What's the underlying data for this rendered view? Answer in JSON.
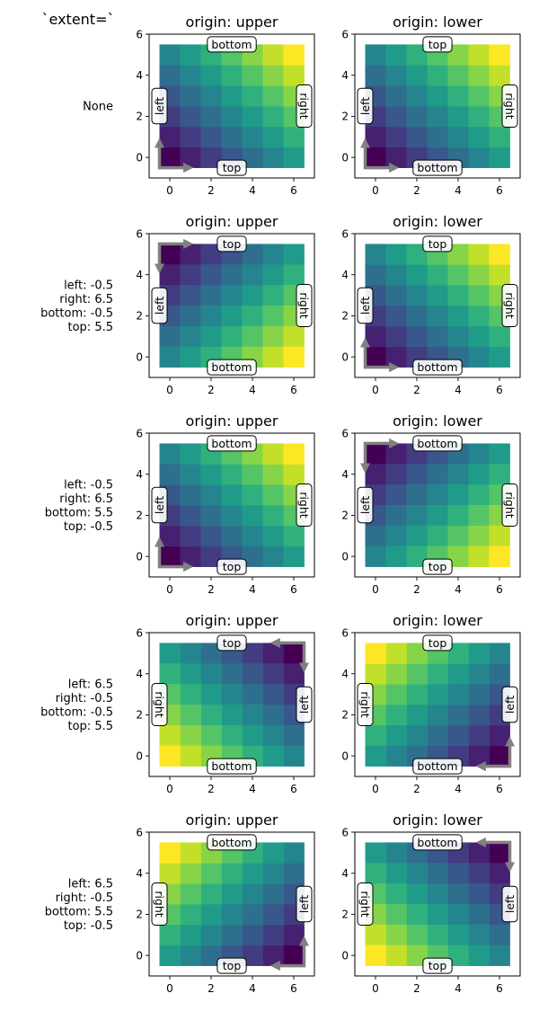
{
  "figure": {
    "header_text": "`extent=`",
    "title_left": "origin: upper",
    "title_right": "origin: lower",
    "label_left_text": "left",
    "label_right_text": "right",
    "label_top_text": "top",
    "label_bottom_text": "bottom",
    "colormap": "viridis",
    "colormap_stops": [
      "#440154",
      "#482878",
      "#3e4989",
      "#31688e",
      "#26828e",
      "#1f9e89",
      "#35b779",
      "#6ece58",
      "#b5de2b",
      "#fde725"
    ],
    "arrow_color": "#808080",
    "label_box_fill": "#ffffff",
    "label_box_edge": "#000000"
  },
  "chart_data": {
    "type": "heatmap",
    "image_values": [
      [
        0,
        1,
        2,
        3,
        4,
        5,
        6
      ],
      [
        1,
        2,
        3,
        4,
        5,
        6,
        7
      ],
      [
        2,
        3,
        4,
        5,
        6,
        7,
        8
      ],
      [
        3,
        4,
        5,
        6,
        7,
        8,
        9
      ],
      [
        4,
        5,
        6,
        7,
        8,
        9,
        10
      ],
      [
        5,
        6,
        7,
        8,
        9,
        10,
        11
      ]
    ],
    "xlim": [
      -1,
      7
    ],
    "ylim": [
      -1,
      6
    ],
    "xticks": [
      0,
      2,
      4,
      6
    ],
    "yticks": [
      0,
      2,
      4,
      6
    ],
    "rows": [
      {
        "row_label": [
          "None"
        ],
        "extent": null
      },
      {
        "row_label": [
          "left: -0.5",
          "right: 6.5",
          "bottom: -0.5",
          "top: 5.5"
        ],
        "extent": [
          -0.5,
          6.5,
          -0.5,
          5.5
        ]
      },
      {
        "row_label": [
          "left: -0.5",
          "right: 6.5",
          "bottom: 5.5",
          "top: -0.5"
        ],
        "extent": [
          -0.5,
          6.5,
          5.5,
          -0.5
        ]
      },
      {
        "row_label": [
          "left: 6.5",
          "right: -0.5",
          "bottom: -0.5",
          "top: 5.5"
        ],
        "extent": [
          6.5,
          -0.5,
          -0.5,
          5.5
        ]
      },
      {
        "row_label": [
          "left: 6.5",
          "right: -0.5",
          "bottom: 5.5",
          "top: -0.5"
        ],
        "extent": [
          6.5,
          -0.5,
          5.5,
          -0.5
        ]
      }
    ],
    "columns": [
      {
        "origin": "upper",
        "title": "origin: upper"
      },
      {
        "origin": "lower",
        "title": "origin: lower"
      }
    ]
  }
}
